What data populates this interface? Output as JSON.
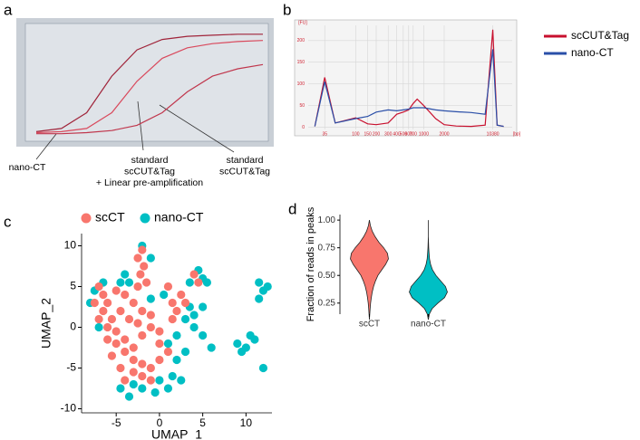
{
  "chart_data": [
    {
      "type": "line",
      "panel": "a",
      "x": [
        0,
        5,
        10,
        15,
        20,
        25,
        30,
        35,
        40,
        45
      ],
      "xlim": [
        0,
        45
      ],
      "ylim": [
        -2,
        100
      ],
      "series": [
        {
          "color": "#a0243a",
          "values": [
            2,
            5,
            20,
            55,
            80,
            90,
            93,
            94,
            95,
            95
          ]
        },
        {
          "color": "#d9495c",
          "values": [
            1,
            2,
            5,
            20,
            50,
            72,
            82,
            86,
            88,
            89
          ]
        },
        {
          "color": "#c0364c",
          "values": [
            0,
            0,
            1,
            3,
            8,
            20,
            40,
            55,
            62,
            66
          ]
        }
      ],
      "annotations": [
        {
          "lines": [
            "nano-CT"
          ]
        },
        {
          "lines": [
            "standard",
            "scCUT&Tag",
            "+ Linear pre-amplification"
          ]
        },
        {
          "lines": [
            "standard",
            "scCUT&Tag"
          ]
        }
      ]
    },
    {
      "type": "line",
      "panel": "b",
      "xlog": true,
      "grid": true,
      "legend": "right",
      "ylabel": "[FU]",
      "xlabel": "[bp]",
      "x": [
        25,
        35,
        50,
        100,
        150,
        200,
        300,
        400,
        500,
        600,
        700,
        800,
        1000,
        1500,
        2000,
        3000,
        5000,
        8000,
        10380,
        12000,
        15000
      ],
      "xlim": [
        20,
        20000
      ],
      "ylim": [
        -5,
        235
      ],
      "xticks": [
        35,
        100,
        150,
        200,
        300,
        400,
        500,
        600,
        700,
        1000,
        2000,
        10380
      ],
      "yticks": [
        0,
        50,
        100,
        150,
        200
      ],
      "series": [
        {
          "name": "scCUT&Tag",
          "color": "#c8102e",
          "values": [
            2,
            115,
            10,
            22,
            8,
            6,
            10,
            30,
            35,
            40,
            55,
            65,
            50,
            20,
            6,
            3,
            2,
            5,
            225,
            5,
            2
          ]
        },
        {
          "name": "nano-CT",
          "color": "#2a4fa8",
          "values": [
            2,
            105,
            10,
            20,
            25,
            35,
            40,
            38,
            40,
            42,
            45,
            45,
            45,
            40,
            38,
            36,
            34,
            30,
            180,
            5,
            2
          ]
        }
      ]
    },
    {
      "type": "scatter",
      "panel": "c",
      "legend": "top",
      "xlabel": "UMAP_1",
      "ylabel": "UMAP_2",
      "xlim": [
        -9,
        13
      ],
      "ylim": [
        -10.5,
        11.5
      ],
      "xticks": [
        -5,
        0,
        5,
        10
      ],
      "yticks": [
        -10,
        -5,
        0,
        5,
        10
      ],
      "series": [
        {
          "name": "nano-CT",
          "color": "#00bfc4",
          "x": [
            -4,
            -3.5,
            -4.5,
            -6.5,
            -7.5,
            -2,
            -1,
            4.5,
            5,
            3.5,
            5.5,
            11.5,
            12,
            11.5,
            12.5,
            9,
            10,
            11,
            9.5,
            10.5,
            3,
            4,
            4,
            5,
            3.5,
            5,
            2,
            0,
            1.5,
            2.5,
            1,
            -0.5,
            -2,
            -3.5,
            -4.5,
            -3,
            2,
            3,
            1,
            6,
            12,
            -8,
            -7,
            0.5,
            -1
          ],
          "y": [
            6.5,
            5.5,
            5.5,
            5.5,
            4.5,
            10,
            8.5,
            7,
            6,
            5.5,
            5.5,
            5.5,
            4.5,
            3.5,
            5,
            -2,
            -2.5,
            -1.5,
            -3,
            -1,
            1,
            1.5,
            0,
            2.5,
            2.5,
            -1,
            -1,
            -6.5,
            -6,
            -6.5,
            -7.5,
            -8,
            -7.5,
            -8.5,
            -7.5,
            -7,
            -4,
            -3,
            -2,
            -2.5,
            -5,
            3,
            0,
            4,
            3.5
          ]
        },
        {
          "name": "scCT",
          "color": "#f8766d",
          "x": [
            -2,
            -2.5,
            -1.8,
            -2.2,
            -1.5,
            -2.5,
            -7,
            -6.5,
            -7.5,
            -6,
            -5,
            -4,
            -6.5,
            -5.5,
            -7,
            -6,
            -5,
            -4.5,
            -3,
            -2,
            -1,
            -2.5,
            -1,
            0,
            -3.5,
            -5,
            -4,
            -5.5,
            -3,
            -4.5,
            -3,
            -2,
            -1,
            0,
            1,
            -2,
            -4,
            -1,
            -3,
            0,
            1.5,
            2,
            3,
            2.5,
            1,
            1.5,
            4,
            4.5,
            -4,
            -6,
            -2
          ],
          "y": [
            9.5,
            8.5,
            7.5,
            6.5,
            5.5,
            5,
            5,
            4,
            3,
            3,
            4.5,
            4,
            2,
            1,
            1,
            0,
            -0.5,
            2,
            3,
            2,
            1.5,
            0.5,
            0,
            -0.5,
            1,
            -2,
            -3,
            -3.5,
            -4,
            -5,
            -5.5,
            -4.5,
            -5,
            -4,
            -3,
            -6,
            -6.5,
            -6.5,
            -2.5,
            -2,
            3,
            2,
            3,
            4,
            5,
            1,
            6.5,
            5.5,
            -1.5,
            -1.5,
            -1
          ]
        }
      ]
    },
    {
      "type": "violin",
      "panel": "d",
      "ylabel": "Fraction of reads in peaks",
      "categories": [
        "scCT",
        "nano-CT"
      ],
      "colors": [
        "#f8766d",
        "#00bfc4"
      ],
      "ylim": [
        0.15,
        1.05
      ],
      "yticks": [
        0.25,
        {
          "value": 0.5,
          "label": "0.50"
        },
        0.75,
        {
          "value": 1,
          "label": "1.00"
        }
      ],
      "y_grid": [
        0.1,
        0.15,
        0.2,
        0.25,
        0.3,
        0.35,
        0.4,
        0.45,
        0.5,
        0.55,
        0.6,
        0.65,
        0.7,
        0.75,
        0.8,
        0.85,
        0.9,
        0.95,
        1.0
      ],
      "densities": [
        [
          0,
          0.02,
          0.04,
          0.06,
          0.1,
          0.15,
          0.22,
          0.32,
          0.45,
          0.65,
          0.85,
          1.0,
          0.95,
          0.75,
          0.5,
          0.3,
          0.15,
          0.05,
          0
        ],
        [
          0,
          0.05,
          0.2,
          0.5,
          0.85,
          1.0,
          0.9,
          0.65,
          0.4,
          0.22,
          0.12,
          0.06,
          0.04,
          0.02,
          0.01,
          0,
          0,
          0,
          0
        ]
      ]
    }
  ]
}
